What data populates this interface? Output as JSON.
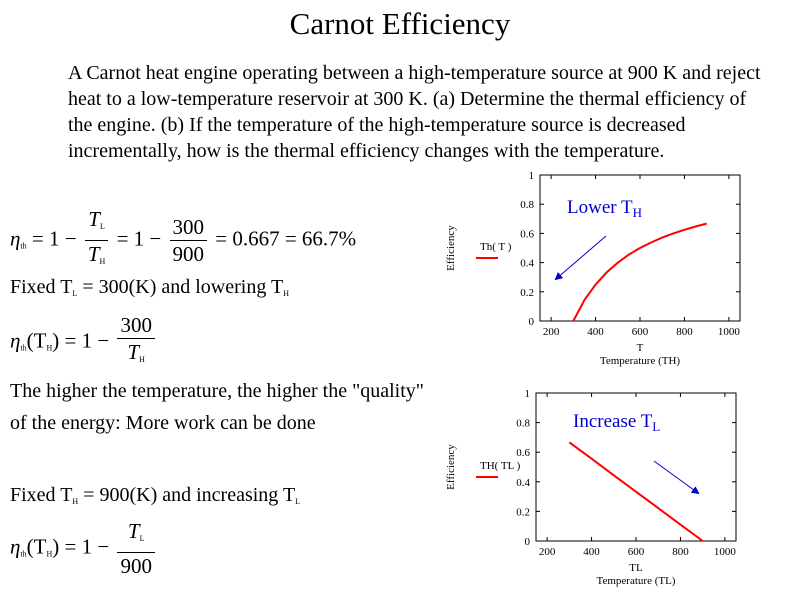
{
  "title": "Carnot Efficiency",
  "problem": "A Carnot heat engine operating between a high-temperature source at 900 K and reject heat to a low-temperature reservoir at 300 K. (a) Determine the thermal efficiency of the engine. (b) If the temperature of the high-temperature source is decreased incrementally, how is the thermal efficiency changes with the temperature.",
  "equations": {
    "eq1": {
      "eta": "η",
      "eta_sub": "th",
      "equals": "= 1 −",
      "num1": "T",
      "num1_sub": "L",
      "den1": "T",
      "den1_sub": "H",
      "equals2": "= 1 −",
      "num2": "300",
      "den2": "900",
      "result": "= 0.667 = 66.7%"
    },
    "fixed_tl": "Fixed T",
    "fixed_tl_sub": "L",
    "fixed_tl_rest": "= 300(K) and lowering T",
    "fixed_tl_rest_sub": "H",
    "eq2": {
      "eta": "η",
      "eta_sub": "th",
      "arg": "(T",
      "arg_sub": "H",
      "arg_close": ")",
      "equals": "= 1 −",
      "num": "300",
      "den": "T",
      "den_sub": "H"
    },
    "quality_line1": "The higher the temperature, the higher the \"quality\"",
    "quality_line2": "of the energy: More work can be done",
    "fixed_th": "Fixed T",
    "fixed_th_sub": "H",
    "fixed_th_rest": "= 900(K) and increasing T",
    "fixed_th_rest_sub": "L",
    "eq3": {
      "eta": "η",
      "eta_sub": "th",
      "arg": "(T",
      "arg_sub": "H",
      "arg_close": ")",
      "equals": "= 1 −",
      "num": "T",
      "num_sub": "L",
      "den": "900"
    }
  },
  "chart_data": [
    {
      "type": "line",
      "annotation": "Lower T",
      "annotation_sub": "H",
      "xlabel_var": "T",
      "xlabel": "Temperature (TH)",
      "ylabel": "Efficiency",
      "legend": "Th( T )",
      "xlim": [
        150,
        1050
      ],
      "ylim": [
        0,
        1
      ],
      "xticks": [
        200,
        400,
        600,
        800,
        1000
      ],
      "yticks": [
        0,
        0.2,
        0.4,
        0.6,
        0.8,
        1
      ],
      "xtick_labels": [
        "200",
        "400",
        "600",
        "800",
        "1000"
      ],
      "ytick_labels": [
        "0",
        "0.2",
        "0.4",
        "0.6",
        "0.8",
        "1"
      ],
      "series_color": "#ff0000",
      "arrow_color": "#0000cc",
      "x": [
        300,
        350,
        400,
        450,
        500,
        550,
        600,
        650,
        700,
        750,
        800,
        850,
        900
      ],
      "y": [
        0,
        0.143,
        0.25,
        0.333,
        0.4,
        0.455,
        0.5,
        0.538,
        0.571,
        0.6,
        0.625,
        0.647,
        0.667
      ]
    },
    {
      "type": "line",
      "annotation": "Increase T",
      "annotation_sub": "L",
      "xlabel_var": "TL",
      "xlabel": "Temperature (TL)",
      "ylabel": "Efficiency",
      "legend": "TH( TL )",
      "xlim": [
        150,
        1050
      ],
      "ylim": [
        0,
        1
      ],
      "xticks": [
        200,
        400,
        600,
        800,
        1000
      ],
      "yticks": [
        0,
        0.2,
        0.4,
        0.6,
        0.8,
        1
      ],
      "xtick_labels": [
        "200",
        "400",
        "600",
        "800",
        "1000"
      ],
      "ytick_labels": [
        "0",
        "0.2",
        "0.4",
        "0.6",
        "0.8",
        "1"
      ],
      "series_color": "#ff0000",
      "arrow_color": "#0000cc",
      "x": [
        300,
        400,
        500,
        600,
        700,
        800,
        900
      ],
      "y": [
        0.667,
        0.556,
        0.444,
        0.333,
        0.222,
        0.111,
        0
      ]
    }
  ]
}
